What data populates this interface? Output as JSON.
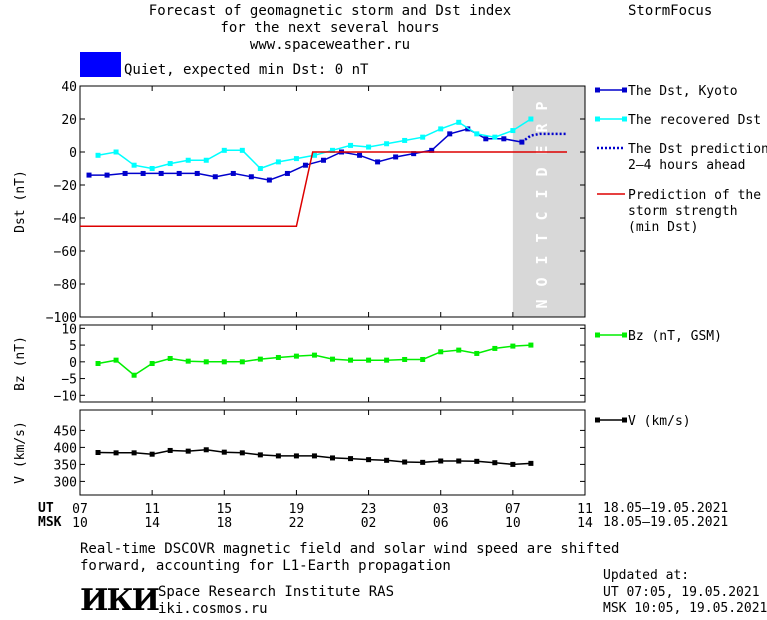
{
  "header": {
    "title_line1": "Forecast of geomagnetic storm and Dst index",
    "title_line2": "for the next several hours",
    "url": "www.spaceweather.ru",
    "brand": "StormFocus"
  },
  "status": {
    "label": "Quiet, expected min Dst: 0 nT",
    "color": "#0000ff"
  },
  "footer": {
    "note_line1": "Real-time DSCOVR magnetic field and solar wind speed are shifted",
    "note_line2": "forward, accounting for L1-Earth propagation",
    "institute": "Space Research Institute RAS",
    "site": "iki.cosmos.ru",
    "logo_text": "ИКИ",
    "updated_label": "Updated at:",
    "updated_ut": "UT   07:05, 19.05.2021",
    "updated_msk": "MSK 10:05, 19.05.2021"
  },
  "chart_data": [
    {
      "type": "line",
      "ylabel": "Dst (nT)",
      "ylim": [
        -100,
        40
      ],
      "yticks": [
        "40",
        "20",
        "0",
        "−20",
        "−40",
        "−60",
        "−80",
        "−100"
      ],
      "prediction_label": "PREDICTION",
      "colors": {
        "kyoto": "#0000cc",
        "recovered": "#00ffff",
        "prediction": "#0000cc",
        "strength": "#dd0000",
        "prediction_band": "#d8d8d8"
      },
      "legend": [
        {
          "label": "The Dst, Kyoto",
          "color": "#0000cc",
          "style": "solid-marker"
        },
        {
          "label": "The recovered Dst",
          "color": "#00ffff",
          "style": "solid-marker"
        },
        {
          "label": "The Dst prediction",
          "label2": "2–4 hours ahead",
          "color": "#0000cc",
          "style": "dotted"
        },
        {
          "label": "Prediction of the",
          "label2": "storm strength",
          "label3": "(min Dst)",
          "color": "#dd0000",
          "style": "solid"
        }
      ],
      "series": [
        {
          "name": "The Dst, Kyoto",
          "x": [
            7.5,
            8.5,
            9.5,
            10.5,
            11.5,
            12.5,
            13.5,
            14.5,
            15.5,
            16.5,
            17.5,
            18.5,
            19.5,
            20.5,
            21.5,
            22.5,
            23.5,
            24.5,
            25.5,
            26.5,
            27.5,
            28.5,
            29.5,
            30.5,
            31.5
          ],
          "y": [
            -14,
            -14,
            -13,
            -13,
            -13,
            -13,
            -13,
            -15,
            -13,
            -15,
            -17,
            -13,
            -8,
            -5,
            0,
            -2,
            -6,
            -3,
            -1,
            1,
            11,
            14,
            8,
            8,
            6
          ]
        },
        {
          "name": "The recovered Dst",
          "x": [
            8.0,
            9.0,
            10.0,
            11.0,
            12.0,
            13.0,
            14.0,
            15.0,
            16.0,
            17.0,
            18.0,
            19.0,
            20.0,
            21.0,
            22.0,
            23.0,
            24.0,
            25.0,
            26.0,
            27.0,
            28.0,
            29.0,
            30.0,
            31.0,
            32.0
          ],
          "y": [
            -2,
            0,
            -8,
            -10,
            -7,
            -5,
            -5,
            1,
            1,
            -10,
            -6,
            -4,
            -2,
            1,
            4,
            3,
            5,
            7,
            9,
            14,
            18,
            11,
            9,
            13,
            20
          ]
        },
        {
          "name": "The Dst prediction",
          "x": [
            31.5,
            32.0,
            32.5,
            33.0,
            33.5,
            34.0
          ],
          "y": [
            6,
            10,
            11,
            11,
            11,
            11
          ]
        },
        {
          "name": "Prediction of the storm strength",
          "x": [
            7,
            19,
            19.9,
            34
          ],
          "y": [
            -45,
            -45,
            0,
            0
          ]
        }
      ]
    },
    {
      "type": "line",
      "ylabel": "Bz (nT)",
      "ylim": [
        -12,
        11
      ],
      "yticks": [
        "10",
        "5",
        "0",
        "−5",
        "−10"
      ],
      "legend": [
        {
          "label": "Bz (nT, GSM)",
          "color": "#00ee00"
        }
      ],
      "series": [
        {
          "name": "Bz (nT, GSM)",
          "x": [
            8.0,
            9.0,
            10.0,
            11.0,
            12.0,
            13.0,
            14.0,
            15.0,
            16.0,
            17.0,
            18.0,
            19.0,
            20.0,
            21.0,
            22.0,
            23.0,
            24.0,
            25.0,
            26.0,
            27.0,
            28.0,
            29.0,
            30.0,
            31.0,
            32.0
          ],
          "y": [
            -0.5,
            0.5,
            -4,
            -0.5,
            1,
            0.2,
            0,
            0,
            0,
            0.8,
            1.3,
            1.7,
            2,
            0.8,
            0.5,
            0.5,
            0.5,
            0.7,
            0.7,
            3,
            3.5,
            2.5,
            4,
            4.7,
            5
          ]
        }
      ]
    },
    {
      "type": "line",
      "ylabel": "V (km/s)",
      "ylim": [
        260,
        510
      ],
      "yticks": [
        "450",
        "400",
        "350",
        "300"
      ],
      "legend": [
        {
          "label": "V (km/s)",
          "color": "#000000"
        }
      ],
      "series": [
        {
          "name": "V (km/s)",
          "x": [
            8.0,
            9.0,
            10.0,
            11.0,
            12.0,
            13.0,
            14.0,
            15.0,
            16.0,
            17.0,
            18.0,
            19.0,
            20.0,
            21.0,
            22.0,
            23.0,
            24.0,
            25.0,
            26.0,
            27.0,
            28.0,
            29.0,
            30.0,
            31.0,
            32.0
          ],
          "y": [
            385,
            384,
            384,
            380,
            391,
            389,
            393,
            386,
            384,
            378,
            375,
            375,
            375,
            369,
            367,
            364,
            362,
            357,
            356,
            360,
            360,
            359,
            355,
            350,
            353
          ]
        }
      ]
    }
  ],
  "time_axis": {
    "ut_label": "UT",
    "msk_label": "MSK",
    "x_range": [
      7,
      35
    ],
    "ut_ticks": [
      {
        "x": 7,
        "label": "07"
      },
      {
        "x": 11,
        "label": "11"
      },
      {
        "x": 15,
        "label": "15"
      },
      {
        "x": 19,
        "label": "19"
      },
      {
        "x": 23,
        "label": "23"
      },
      {
        "x": 27,
        "label": "03"
      },
      {
        "x": 31,
        "label": "07"
      },
      {
        "x": 35,
        "label": "11"
      }
    ],
    "msk_ticks": [
      {
        "x": 7,
        "label": "10"
      },
      {
        "x": 11,
        "label": "14"
      },
      {
        "x": 15,
        "label": "18"
      },
      {
        "x": 19,
        "label": "22"
      },
      {
        "x": 23,
        "label": "02"
      },
      {
        "x": 27,
        "label": "06"
      },
      {
        "x": 31,
        "label": "10"
      },
      {
        "x": 35,
        "label": "14"
      }
    ],
    "ut_date": "18.05–19.05.2021",
    "msk_date": "18.05–19.05.2021",
    "prediction_start": 31
  }
}
